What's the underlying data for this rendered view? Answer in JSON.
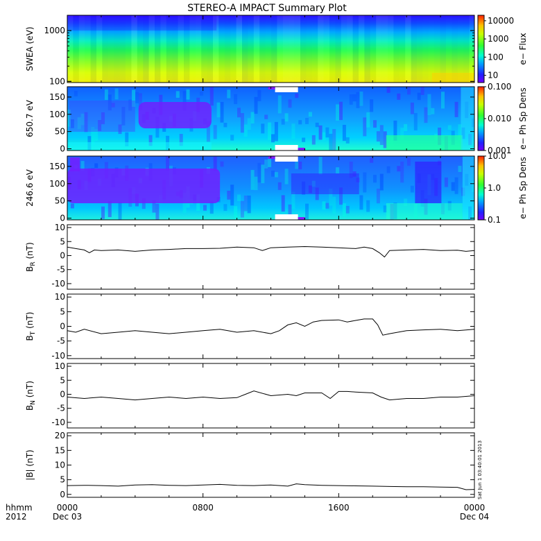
{
  "title": "STEREO-A IMPACT Summary Plot",
  "stamp": "Sat Jun  1 03:40:01 2013",
  "time_axis": {
    "row1_label": "hhmm",
    "row2_label": "2012",
    "ticks": [
      {
        "hours": 0,
        "label": "0000",
        "sublabel": "Dec 03"
      },
      {
        "hours": 8,
        "label": "0800",
        "sublabel": ""
      },
      {
        "hours": 16,
        "label": "1600",
        "sublabel": ""
      },
      {
        "hours": 24,
        "label": "0000",
        "sublabel": "Dec 04"
      }
    ]
  },
  "chart_data": [
    {
      "type": "heatmap",
      "id": "swea",
      "ylabel": "SWEA (eV)",
      "ylog": true,
      "ylim": [
        95,
        2000
      ],
      "yticks": [
        {
          "v": 100,
          "label": "100"
        },
        {
          "v": 1000,
          "label": "1000"
        }
      ],
      "colorbar": {
        "label": "e− Flux",
        "log": true,
        "range": [
          4,
          20000
        ],
        "ticks": [
          {
            "v": 10,
            "label": "10"
          },
          {
            "v": 100,
            "label": "100"
          },
          {
            "v": 1000,
            "label": "1000"
          },
          {
            "v": 10000,
            "label": "10000"
          }
        ]
      }
    },
    {
      "type": "heatmap",
      "id": "pad650",
      "ylabel": "650.7 eV",
      "ylim": [
        -5,
        180
      ],
      "yticks": [
        {
          "v": 0,
          "label": "0"
        },
        {
          "v": 50,
          "label": "50"
        },
        {
          "v": 100,
          "label": "100"
        },
        {
          "v": 150,
          "label": "150"
        }
      ],
      "colorbar": {
        "label": "e− Ph Sp Dens",
        "log": true,
        "range": [
          0.001,
          0.1
        ],
        "ticks": [
          {
            "v": 0.001,
            "label": "0.001"
          },
          {
            "v": 0.01,
            "label": "0.010"
          },
          {
            "v": 0.1,
            "label": "0.100"
          }
        ]
      }
    },
    {
      "type": "heatmap",
      "id": "pad246",
      "ylabel": "246.6 eV",
      "ylim": [
        -5,
        180
      ],
      "yticks": [
        {
          "v": 0,
          "label": "0"
        },
        {
          "v": 50,
          "label": "50"
        },
        {
          "v": 100,
          "label": "100"
        },
        {
          "v": 150,
          "label": "150"
        }
      ],
      "colorbar": {
        "label": "e− Ph Sp Dens",
        "log": true,
        "range": [
          0.1,
          10
        ],
        "ticks": [
          {
            "v": 0.1,
            "label": "0.1"
          },
          {
            "v": 1,
            "label": "1.0"
          },
          {
            "v": 10,
            "label": "10.0"
          }
        ]
      }
    },
    {
      "type": "line",
      "id": "br",
      "ylabel_main": "B",
      "ylabel_sub": "R",
      "ylabel_unit": " (nT)",
      "ylim": [
        -12,
        11
      ],
      "yticks": [
        -10,
        -5,
        0,
        5,
        10
      ],
      "x_hours": [
        0,
        0.5,
        1,
        1.3,
        1.6,
        2,
        3,
        4,
        5,
        6,
        7,
        8,
        9,
        10,
        11,
        11.5,
        12,
        13,
        14,
        15,
        16,
        17,
        17.5,
        18,
        18.4,
        18.7,
        19,
        20,
        21,
        22,
        23,
        23.5,
        24
      ],
      "y": [
        3,
        2.5,
        2,
        1,
        2,
        1.8,
        2,
        1.5,
        2,
        2.2,
        2.5,
        2.5,
        2.6,
        3,
        2.8,
        1.8,
        2.8,
        3,
        3.2,
        3,
        2.8,
        2.5,
        3,
        2.5,
        1,
        -0.5,
        1.8,
        2,
        2.2,
        1.8,
        1.9,
        1.5,
        1.8
      ]
    },
    {
      "type": "line",
      "id": "bt",
      "ylabel_main": "B",
      "ylabel_sub": "T",
      "ylabel_unit": " (nT)",
      "ylim": [
        -11,
        11
      ],
      "yticks": [
        -10,
        -5,
        0,
        5,
        10
      ],
      "x_hours": [
        0,
        0.5,
        1,
        2,
        3,
        4,
        5,
        6,
        7,
        8,
        9,
        10,
        11,
        12,
        12.5,
        13,
        13.5,
        14,
        14.5,
        15,
        16,
        16.5,
        17,
        17.5,
        18,
        18.3,
        18.6,
        19,
        20,
        21,
        22,
        23,
        24
      ],
      "y": [
        -1.5,
        -2,
        -1,
        -2.5,
        -2,
        -1.5,
        -2,
        -2.5,
        -2,
        -1.5,
        -1,
        -2,
        -1.5,
        -2.5,
        -1.5,
        0.5,
        1.2,
        0,
        1.5,
        2,
        2.2,
        1.5,
        2,
        2.5,
        2.5,
        0.5,
        -3,
        -2.5,
        -1.5,
        -1.2,
        -1,
        -1.5,
        -1
      ]
    },
    {
      "type": "line",
      "id": "bn",
      "ylabel_main": "B",
      "ylabel_sub": "N",
      "ylabel_unit": " (nT)",
      "ylim": [
        -12,
        11
      ],
      "yticks": [
        -10,
        -5,
        0,
        5,
        10
      ],
      "x_hours": [
        0,
        1,
        2,
        3,
        4,
        5,
        6,
        7,
        8,
        9,
        10,
        10.5,
        11,
        12,
        13,
        13.5,
        14,
        15,
        15.5,
        16,
        16.5,
        17,
        18,
        18.5,
        19,
        20,
        21,
        22,
        23,
        24
      ],
      "y": [
        -1,
        -1.5,
        -1,
        -1.5,
        -2,
        -1.5,
        -1,
        -1.5,
        -1,
        -1.5,
        -1.2,
        0,
        1.2,
        -0.5,
        0,
        -0.5,
        0.5,
        0.5,
        -1.5,
        1,
        1,
        0.8,
        0.5,
        -1,
        -2,
        -1.5,
        -1.5,
        -1,
        -1,
        -0.5
      ]
    },
    {
      "type": "line",
      "id": "bmag",
      "ylabel": "|B| (nT)",
      "ylim": [
        -1,
        21
      ],
      "yticks": [
        0,
        5,
        10,
        15,
        20
      ],
      "x_hours": [
        0,
        1,
        2,
        3,
        4,
        5,
        6,
        7,
        8,
        9,
        10,
        11,
        12,
        13,
        13.5,
        14,
        15,
        16,
        17,
        18,
        19,
        20,
        21,
        22,
        23,
        23.5,
        24
      ],
      "y": [
        3,
        3.1,
        3,
        2.8,
        3.2,
        3.3,
        3.1,
        3,
        3.2,
        3.4,
        3.1,
        3,
        3.2,
        2.8,
        3.6,
        3.3,
        3.1,
        3,
        2.9,
        2.8,
        2.7,
        2.6,
        2.6,
        2.5,
        2.4,
        1.6,
        1.7
      ]
    }
  ]
}
